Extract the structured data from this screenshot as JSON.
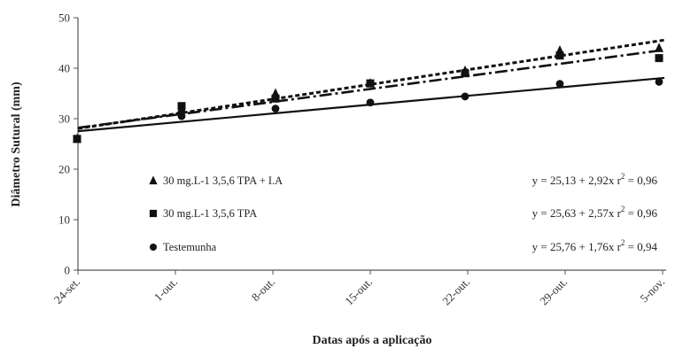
{
  "chart_data": {
    "type": "scatter",
    "x_categories": [
      "24-set.",
      "1-out.",
      "8-out.",
      "15-out.",
      "22-out.",
      "29-out.",
      "5-nov."
    ],
    "xlabel": "Datas após a aplicação",
    "ylabel": "Diâmetro Sutural (mm)",
    "ylim": [
      0,
      50
    ],
    "yticks": [
      0,
      10,
      20,
      30,
      40,
      50
    ],
    "grid": false,
    "legend_placement": "bottom-left",
    "series": [
      {
        "name": "30 mg.L-1   3,5,6 TPA + I.A",
        "marker": "triangle",
        "line_style": "dotted",
        "values": [
          26,
          32,
          35,
          37,
          39.5,
          43.5,
          44
        ],
        "equation": "y = 25,13 + 2,92x",
        "r2_label": "r",
        "r2_value": " = 0,96",
        "fit_intercept": 25.13,
        "fit_slope": 2.92
      },
      {
        "name": "30 mg.L-1   3,5,6 TPA",
        "marker": "square",
        "line_style": "dash-dot",
        "values": [
          26,
          32.5,
          34,
          37,
          39,
          42.5,
          42
        ],
        "equation": "y = 25,63 + 2,57x",
        "r2_label": "r",
        "r2_value": " = 0,96",
        "fit_intercept": 25.63,
        "fit_slope": 2.57
      },
      {
        "name": "Testemunha",
        "marker": "circle",
        "line_style": "solid",
        "values": [
          26,
          30.5,
          32,
          33.2,
          34.4,
          36.9,
          37.3
        ],
        "equation": "y = 25,76 + 1,76x",
        "r2_label": "r",
        "r2_value": " = 0,94",
        "fit_intercept": 25.76,
        "fit_slope": 1.76
      }
    ],
    "colors": {
      "marker": "#111111",
      "axis": "#555555",
      "text": "#222222"
    }
  }
}
